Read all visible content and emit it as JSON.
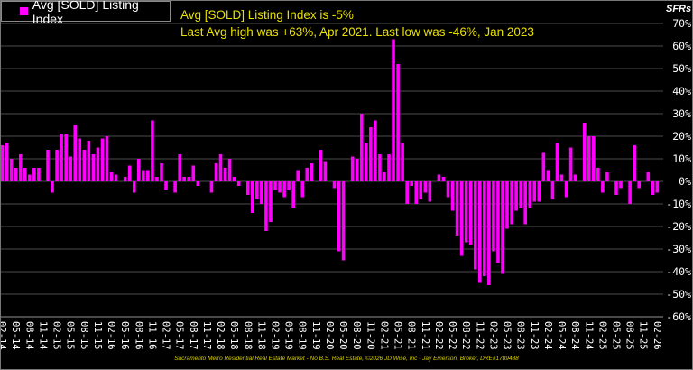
{
  "chart_data": {
    "type": "bar",
    "legend": {
      "label": "Avg [SOLD] Listing Index",
      "placement": "top-left"
    },
    "annotations": [
      "Avg [SOLD] Listing Index is -5%",
      "Last Avg high was +63%, Apr 2021. Last low was -46%, Jan 2023"
    ],
    "ylabel": "SFRs",
    "ylim": [
      -60,
      70
    ],
    "y_unit": "%",
    "y_tick_labels": [
      "70%",
      "60%",
      "50%",
      "40%",
      "30%",
      "20%",
      "10%",
      "0%",
      "-10%",
      "-20%",
      "-30%",
      "-40%",
      "-50%",
      "-60%"
    ],
    "y_ticks": [
      70,
      60,
      50,
      40,
      30,
      20,
      10,
      0,
      -10,
      -20,
      -30,
      -40,
      -50,
      -60
    ],
    "y_axis_side": "right",
    "grid": true,
    "x_interval": "monthly",
    "x_tick_labels": [
      "02-14",
      "05-14",
      "08-14",
      "11-14",
      "02-15",
      "05-15",
      "08-15",
      "11-15",
      "02-16",
      "05-16",
      "08-16",
      "11-16",
      "02-17",
      "05-17",
      "08-17",
      "11-17",
      "02-18",
      "05-18",
      "08-18",
      "11-18",
      "02-19",
      "05-19",
      "08-19",
      "11-19",
      "02-20",
      "05-20",
      "08-20",
      "11-20",
      "02-21",
      "05-21",
      "08-21",
      "11-21",
      "02-22",
      "05-22",
      "08-22",
      "11-22",
      "02-23",
      "05-23",
      "08-23",
      "11-23",
      "02-24",
      "05-24",
      "08-24",
      "11-24",
      "02-25",
      "05-25",
      "08-25",
      "11-25",
      "02-26"
    ],
    "values": [
      16,
      17,
      10,
      6,
      12,
      6,
      3,
      6,
      6,
      0,
      14,
      -5,
      14,
      21,
      21,
      11,
      25,
      19,
      14,
      18,
      12,
      15,
      19,
      20,
      4,
      3,
      0,
      2,
      7,
      -5,
      10,
      5,
      5,
      27,
      2,
      8,
      -4,
      0,
      -5,
      12,
      2,
      2,
      7,
      -2,
      0,
      0,
      -5,
      8,
      12,
      6,
      10,
      2,
      -2,
      0,
      -6,
      -14,
      -8,
      -10,
      -22,
      -18,
      -4,
      -5,
      -7,
      -4,
      -12,
      5,
      -7,
      6,
      8,
      0,
      14,
      9,
      0,
      -3,
      -31,
      -35,
      0,
      11,
      10,
      30,
      17,
      24,
      27,
      12,
      4,
      12,
      63,
      52,
      17,
      -10,
      -2,
      -10,
      -8,
      -5,
      -9,
      0,
      3,
      2,
      -7,
      -13,
      -24,
      -33,
      -27,
      -28,
      -39,
      -45,
      -42,
      -46,
      -31,
      -36,
      -41,
      -21,
      -19,
      -13,
      -12,
      -19,
      -12,
      -9,
      -9,
      13,
      5,
      -8,
      17,
      3,
      -7,
      15,
      3,
      0,
      26,
      20,
      20,
      6,
      -5,
      4,
      0,
      -6,
      -3,
      0,
      -10,
      16,
      -3,
      0,
      4,
      -6,
      -5
    ],
    "colors": {
      "bar": "#ff00ff",
      "annotation": "#e8e000",
      "grid": "#3c3c3c",
      "background": "#000000"
    }
  },
  "footer": "Sacramento Metro Residential Real Estate Market - No B.S. Real Estate, ©2026 JD Wise, Inc - Jay Emerson, Broker, DRE#1789488"
}
